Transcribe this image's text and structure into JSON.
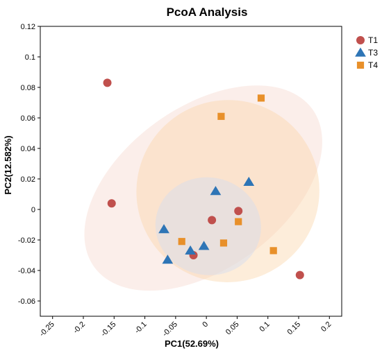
{
  "chart_data": {
    "type": "scatter",
    "title": "PcoA Analysis",
    "xlabel": "PC1(52.69%)",
    "ylabel": "PC2(12.582%)",
    "xlim": [
      -0.27,
      0.22
    ],
    "ylim": [
      -0.07,
      0.12
    ],
    "x_ticks": [
      -0.25,
      -0.2,
      -0.15,
      -0.1,
      -0.05,
      0,
      0.05,
      0.1,
      0.15,
      0.2
    ],
    "x_tick_labels": [
      "-0.25",
      "-0.2",
      "-0.15",
      "-0.1",
      "-0.05",
      "0",
      "0.05",
      "0.1",
      "0.15",
      "0.2"
    ],
    "y_ticks": [
      -0.06,
      -0.04,
      -0.02,
      0,
      0.02,
      0.04,
      0.06,
      0.08,
      0.1,
      0.12
    ],
    "y_tick_labels": [
      "-0.06",
      "-0.04",
      "-0.02",
      "0",
      "0.02",
      "0.04",
      "0.06",
      "0.08",
      "0.1",
      "0.12"
    ],
    "grid": false,
    "legend_position": "right",
    "series": [
      {
        "name": "T1",
        "color": "#c0504d",
        "marker": "circle",
        "points": [
          [
            -0.161,
            0.083
          ],
          [
            -0.154,
            0.004
          ],
          [
            0.009,
            -0.007
          ],
          [
            0.052,
            -0.001
          ],
          [
            -0.021,
            -0.03
          ],
          [
            0.152,
            -0.043
          ]
        ]
      },
      {
        "name": "T3",
        "color": "#2e75b6",
        "marker": "triangle",
        "points": [
          [
            0.015,
            0.012
          ],
          [
            0.069,
            0.018
          ],
          [
            -0.069,
            -0.013
          ],
          [
            -0.026,
            -0.027
          ],
          [
            -0.004,
            -0.024
          ],
          [
            -0.063,
            -0.033
          ]
        ]
      },
      {
        "name": "T4",
        "color": "#e8902a",
        "marker": "square",
        "points": [
          [
            0.024,
            0.061
          ],
          [
            0.089,
            0.073
          ],
          [
            0.052,
            -0.008
          ],
          [
            -0.04,
            -0.021
          ],
          [
            0.028,
            -0.022
          ],
          [
            0.109,
            -0.027
          ]
        ]
      }
    ],
    "ellipses": [
      {
        "series": "T1",
        "color": "#f2c9bd",
        "opacity": 0.32,
        "center": [
          -0.005,
          0.014
        ],
        "semi_axes": [
          0.219,
          0.053
        ],
        "rotation_deg": -36
      },
      {
        "series": "T4",
        "color": "#fbd3a8",
        "opacity": 0.42,
        "center": [
          0.035,
          0.012
        ],
        "semi_axes": [
          0.148,
          0.06
        ],
        "rotation_deg": 57
      },
      {
        "series": "T3",
        "color": "#d3dbf0",
        "opacity": 0.45,
        "center": [
          0.003,
          -0.011
        ],
        "semi_axes": [
          0.086,
          0.032
        ],
        "rotation_deg": 10
      }
    ]
  }
}
